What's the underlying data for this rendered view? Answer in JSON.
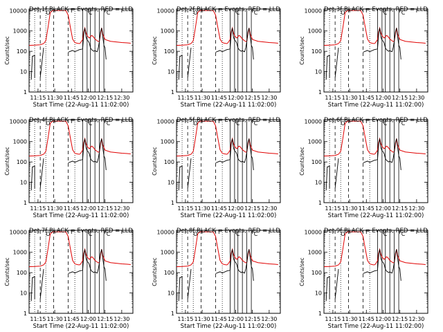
{
  "chart_data": [
    {
      "type": "line",
      "title": "Det 1f BLACK = Events, RED = LLD",
      "xlabel": "Start Time (22-Aug-11 11:02:00)",
      "ylabel": "Counts/sec",
      "x_ticks": [
        "11:15",
        "11:30",
        "11:45",
        "12:00",
        "12:15",
        "12:30"
      ],
      "y_ticks": [
        "1",
        "10",
        "100",
        "1000",
        "10000"
      ],
      "xlim": [
        "11:07",
        "12:40"
      ],
      "ylim": [
        1,
        12000
      ],
      "log_y": true,
      "series": [
        {
          "name": "Events",
          "color": "#000000"
        },
        {
          "name": "LLD",
          "color": "#e00000"
        }
      ]
    },
    {
      "type": "line",
      "title": "Det 2f BLACK = Events, RED = LLD",
      "xlabel": "Start Time (22-Aug-11 11:02:00)",
      "ylabel": "Counts/sec",
      "x_ticks": [
        "11:15",
        "11:30",
        "11:45",
        "12:00",
        "12:15",
        "12:30"
      ],
      "y_ticks": [
        "1",
        "10",
        "100",
        "1000",
        "10000"
      ],
      "xlim": [
        "11:07",
        "12:40"
      ],
      "ylim": [
        1,
        12000
      ],
      "log_y": true,
      "series": [
        {
          "name": "Events",
          "color": "#000000"
        },
        {
          "name": "LLD",
          "color": "#e00000"
        }
      ]
    },
    {
      "type": "line",
      "title": "Det 3f BLACK = Events, RED = LLD",
      "xlabel": "Start Time (22-Aug-11 11:02:00)",
      "ylabel": "Counts/sec",
      "x_ticks": [
        "11:15",
        "11:30",
        "11:45",
        "12:00",
        "12:15",
        "12:30"
      ],
      "y_ticks": [
        "1",
        "10",
        "100",
        "1000",
        "10000"
      ],
      "xlim": [
        "11:07",
        "12:40"
      ],
      "ylim": [
        1,
        12000
      ],
      "log_y": true,
      "series": [
        {
          "name": "Events",
          "color": "#000000"
        },
        {
          "name": "LLD",
          "color": "#e00000"
        }
      ]
    },
    {
      "type": "line",
      "title": "Det 4f BLACK = Events, RED = LLD",
      "xlabel": "Start Time (22-Aug-11 11:02:00)",
      "ylabel": "Counts/sec",
      "x_ticks": [
        "11:15",
        "11:30",
        "11:45",
        "12:00",
        "12:15",
        "12:30"
      ],
      "y_ticks": [
        "1",
        "10",
        "100",
        "1000",
        "10000"
      ],
      "xlim": [
        "11:07",
        "12:40"
      ],
      "ylim": [
        1,
        12000
      ],
      "log_y": true,
      "series": [
        {
          "name": "Events",
          "color": "#000000"
        },
        {
          "name": "LLD",
          "color": "#e00000"
        }
      ]
    },
    {
      "type": "line",
      "title": "Det 5f BLACK = Events, RED = LLD",
      "xlabel": "Start Time (22-Aug-11 11:02:00)",
      "ylabel": "Counts/sec",
      "x_ticks": [
        "11:15",
        "11:30",
        "11:45",
        "12:00",
        "12:15",
        "12:30"
      ],
      "y_ticks": [
        "1",
        "10",
        "100",
        "1000",
        "10000"
      ],
      "xlim": [
        "11:07",
        "12:40"
      ],
      "ylim": [
        1,
        12000
      ],
      "log_y": true,
      "series": [
        {
          "name": "Events",
          "color": "#000000"
        },
        {
          "name": "LLD",
          "color": "#e00000"
        }
      ]
    },
    {
      "type": "line",
      "title": "Det 6f BLACK = Events, RED = LLD",
      "xlabel": "Start Time (22-Aug-11 11:02:00)",
      "ylabel": "Counts/sec",
      "x_ticks": [
        "11:15",
        "11:30",
        "11:45",
        "12:00",
        "12:15",
        "12:30"
      ],
      "y_ticks": [
        "1",
        "10",
        "100",
        "1000",
        "10000"
      ],
      "xlim": [
        "11:07",
        "12:40"
      ],
      "ylim": [
        1,
        12000
      ],
      "log_y": true,
      "series": [
        {
          "name": "Events",
          "color": "#000000"
        },
        {
          "name": "LLD",
          "color": "#e00000"
        }
      ]
    },
    {
      "type": "line",
      "title": "Det 7f BLACK = Events, RED = LLD",
      "xlabel": "Start Time (22-Aug-11 11:02:00)",
      "ylabel": "Counts/sec",
      "x_ticks": [
        "11:15",
        "11:30",
        "11:45",
        "12:00",
        "12:15",
        "12:30"
      ],
      "y_ticks": [
        "1",
        "10",
        "100",
        "1000",
        "10000"
      ],
      "xlim": [
        "11:07",
        "12:40"
      ],
      "ylim": [
        1,
        12000
      ],
      "log_y": true,
      "series": [
        {
          "name": "Events",
          "color": "#000000"
        },
        {
          "name": "LLD",
          "color": "#e00000"
        }
      ]
    },
    {
      "type": "line",
      "title": "Det 8f BLACK = Events, RED = LLD",
      "xlabel": "Start Time (22-Aug-11 11:02:00)",
      "ylabel": "Counts/sec",
      "x_ticks": [
        "11:15",
        "11:30",
        "11:45",
        "12:00",
        "12:15",
        "12:30"
      ],
      "y_ticks": [
        "1",
        "10",
        "100",
        "1000",
        "10000"
      ],
      "xlim": [
        "11:07",
        "12:40"
      ],
      "ylim": [
        1,
        12000
      ],
      "log_y": true,
      "series": [
        {
          "name": "Events",
          "color": "#000000"
        },
        {
          "name": "LLD",
          "color": "#e00000"
        }
      ]
    },
    {
      "type": "line",
      "title": "Det 9f BLACK = Events, RED = LLD",
      "xlabel": "Start Time (22-Aug-11 11:02:00)",
      "ylabel": "Counts/sec",
      "x_ticks": [
        "11:15",
        "11:30",
        "11:45",
        "12:00",
        "12:15",
        "12:30"
      ],
      "y_ticks": [
        "1",
        "10",
        "100",
        "1000",
        "10000"
      ],
      "xlim": [
        "11:07",
        "12:40"
      ],
      "ylim": [
        1,
        12000
      ],
      "log_y": true,
      "series": [
        {
          "name": "Events",
          "color": "#000000"
        },
        {
          "name": "LLD",
          "color": "#e00000"
        }
      ]
    }
  ],
  "markers": {
    "dotted_lines": [
      "11:12",
      "11:22",
      "11:48"
    ],
    "dashed_lines": [
      "11:17",
      "11:29",
      "11:42"
    ],
    "solid_lines": [
      "11:55",
      "11:59",
      "12:02",
      "12:06",
      "12:10",
      "12:14"
    ],
    "box_labels": [
      "O",
      "C",
      "C"
    ],
    "box_times": [
      "11:24",
      "12:02",
      "12:18"
    ]
  },
  "common_series": {
    "lld": {
      "x": [
        "11:07",
        "11:12",
        "11:17",
        "11:20",
        "11:22",
        "11:24",
        "11:26",
        "11:28",
        "11:30",
        "11:33",
        "11:36",
        "11:38",
        "11:40",
        "11:42",
        "11:44",
        "11:46",
        "11:48",
        "11:50",
        "11:52",
        "11:53",
        "11:55",
        "11:56",
        "11:57",
        "11:58",
        "11:59",
        "12:00",
        "12:01",
        "12:02",
        "12:03",
        "12:04",
        "12:05",
        "12:06",
        "12:08",
        "12:09",
        "12:10",
        "12:11",
        "12:12",
        "12:13",
        "12:15",
        "12:20",
        "12:25",
        "12:30",
        "12:35",
        "12:38"
      ],
      "y": [
        195,
        200,
        210,
        240,
        330,
        1500,
        8000,
        10000,
        10000,
        10000,
        10000,
        10000,
        10000,
        6000,
        1500,
        400,
        270,
        250,
        240,
        260,
        380,
        900,
        1400,
        800,
        600,
        500,
        450,
        520,
        600,
        560,
        480,
        400,
        330,
        300,
        320,
        700,
        1400,
        700,
        380,
        310,
        290,
        270,
        260,
        250
      ]
    },
    "events": {
      "segments": [
        {
          "x": [
            "11:09",
            "11:10",
            "11:10",
            "11:11",
            "11:12",
            "11:12"
          ],
          "y": [
            4,
            60,
            55,
            60,
            65,
            5
          ]
        },
        {
          "x": [
            "11:17",
            "11:20"
          ],
          "y": [
            5,
            150
          ]
        },
        {
          "x": [
            "11:42",
            "11:44",
            "11:46",
            "11:48",
            "11:52",
            "11:55",
            "11:56",
            "11:57",
            "11:58",
            "11:59",
            "12:00",
            "12:01",
            "12:02",
            "12:03",
            "12:04",
            "12:05",
            "12:06",
            "12:07",
            "12:08",
            "12:09",
            "12:10",
            "12:11",
            "12:12",
            "12:13",
            "12:14",
            "12:15",
            "12:16"
          ],
          "y": [
            90,
            100,
            110,
            95,
            120,
            130,
            700,
            1400,
            500,
            350,
            320,
            250,
            150,
            120,
            110,
            100,
            110,
            100,
            95,
            150,
            300,
            900,
            1400,
            500,
            200,
            150,
            40
          ]
        }
      ]
    }
  }
}
